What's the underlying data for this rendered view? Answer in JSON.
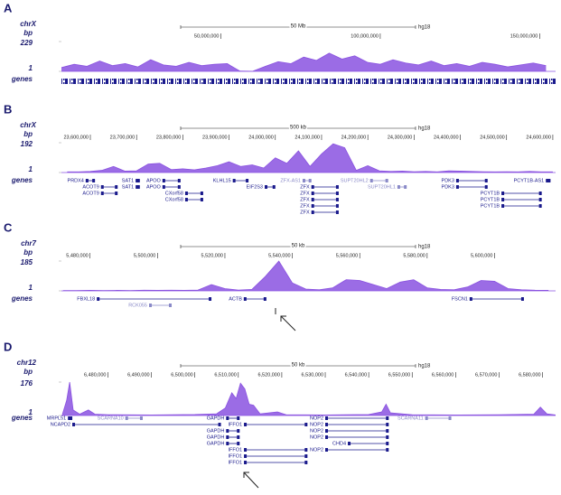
{
  "chart_data": [
    {
      "type": "area",
      "label": "A",
      "chromosome": "chrX",
      "y_label": "bp",
      "genes_label": "genes",
      "scale_bar_label": "50 Mb",
      "assembly": "hg18",
      "xlim": [
        0,
        155000000
      ],
      "xticks": [
        {
          "value": 50000000,
          "label": "50,000,000"
        },
        {
          "value": 100000000,
          "label": "100,000,000"
        },
        {
          "value": 150000000,
          "label": "150,000,000"
        }
      ],
      "ylim": [
        1,
        229
      ],
      "yticks": [
        1,
        229
      ],
      "color": "#8a52e0",
      "x": [
        0,
        4000000,
        8000000,
        12000000,
        16000000,
        20000000,
        24000000,
        28000000,
        32000000,
        36000000,
        40000000,
        44000000,
        48000000,
        52000000,
        56000000,
        60000000,
        64000000,
        68000000,
        72000000,
        76000000,
        80000000,
        84000000,
        88000000,
        92000000,
        96000000,
        100000000,
        104000000,
        108000000,
        112000000,
        116000000,
        120000000,
        124000000,
        128000000,
        132000000,
        136000000,
        140000000,
        144000000,
        148000000,
        152000000
      ],
      "values": [
        30,
        55,
        40,
        80,
        45,
        60,
        35,
        90,
        50,
        40,
        70,
        45,
        55,
        60,
        3,
        2,
        40,
        75,
        60,
        110,
        85,
        140,
        95,
        120,
        70,
        55,
        90,
        65,
        50,
        80,
        45,
        60,
        40,
        70,
        55,
        35,
        50,
        65,
        45
      ],
      "genes": []
    },
    {
      "type": "area",
      "label": "B",
      "chromosome": "chrX",
      "y_label": "bp",
      "genes_label": "genes",
      "scale_bar_label": "500 kb",
      "assembly": "hg18",
      "xlim": [
        23537500,
        24606000
      ],
      "xticks": [
        {
          "value": 23600000,
          "label": "23,600,000"
        },
        {
          "value": 23700000,
          "label": "23,700,000"
        },
        {
          "value": 23800000,
          "label": "23,800,000"
        },
        {
          "value": 23900000,
          "label": "23,900,000"
        },
        {
          "value": 24000000,
          "label": "24,000,000"
        },
        {
          "value": 24100000,
          "label": "24,100,000"
        },
        {
          "value": 24200000,
          "label": "24,200,000"
        },
        {
          "value": 24300000,
          "label": "24,300,000"
        },
        {
          "value": 24400000,
          "label": "24,400,000"
        },
        {
          "value": 24500000,
          "label": "24,500,000"
        },
        {
          "value": 24600000,
          "label": "24,600,000"
        }
      ],
      "ylim": [
        1,
        192
      ],
      "yticks": [
        1,
        192
      ],
      "color": "#8a52e0",
      "x": [
        23550000,
        23575000,
        23600000,
        23625000,
        23650000,
        23675000,
        23700000,
        23725000,
        23750000,
        23775000,
        23800000,
        23825000,
        23850000,
        23875000,
        23900000,
        23925000,
        23950000,
        23975000,
        24000000,
        24025000,
        24050000,
        24075000,
        24100000,
        24125000,
        24150000,
        24175000,
        24200000,
        24225000,
        24250000,
        24275000,
        24300000,
        24325000,
        24350000,
        24375000,
        24400000,
        24425000,
        24450000,
        24475000,
        24500000,
        24525000,
        24550000,
        24575000,
        24600000
      ],
      "values": [
        5,
        5,
        8,
        15,
        40,
        10,
        12,
        55,
        60,
        20,
        25,
        18,
        30,
        45,
        70,
        40,
        50,
        30,
        95,
        60,
        140,
        40,
        120,
        185,
        160,
        15,
        45,
        12,
        8,
        10,
        6,
        8,
        5,
        12,
        10,
        8,
        6,
        5,
        6,
        5,
        8,
        5,
        5
      ],
      "genes": [
        {
          "name": "PRDX4",
          "start": 23590000,
          "end": 23610000,
          "coding": true
        },
        {
          "name": "ACOT9",
          "start": 23623000,
          "end": 23659000,
          "coding": true
        },
        {
          "name": "ACOT9",
          "start": 23623000,
          "end": 23659000,
          "coding": true
        },
        {
          "name": "SAT1",
          "start": 23698000,
          "end": 23707000,
          "coding": true
        },
        {
          "name": "SAT1",
          "start": 23698000,
          "end": 23707000,
          "coding": true
        },
        {
          "name": "APOO",
          "start": 23756000,
          "end": 23795000,
          "coding": true
        },
        {
          "name": "APOO",
          "start": 23756000,
          "end": 23795000,
          "coding": true
        },
        {
          "name": "CXorf58",
          "start": 23805000,
          "end": 23844000,
          "coding": true
        },
        {
          "name": "CXorf58",
          "start": 23805000,
          "end": 23844000,
          "coding": true
        },
        {
          "name": "KLHL15",
          "start": 23908000,
          "end": 23942000,
          "coding": true
        },
        {
          "name": "EIF2S3",
          "start": 23977000,
          "end": 24000000,
          "coding": true
        },
        {
          "name": "ZFX-AS1",
          "start": 24059000,
          "end": 24078000,
          "coding": false
        },
        {
          "name": "ZFX",
          "start": 24078000,
          "end": 24137000,
          "coding": true
        },
        {
          "name": "ZFX",
          "start": 24078000,
          "end": 24137000,
          "coding": true
        },
        {
          "name": "ZFX",
          "start": 24078000,
          "end": 24137000,
          "coding": true
        },
        {
          "name": "ZFX",
          "start": 24078000,
          "end": 24137000,
          "coding": true
        },
        {
          "name": "ZFX",
          "start": 24078000,
          "end": 24137000,
          "coding": true
        },
        {
          "name": "SUPT20HL2",
          "start": 24205000,
          "end": 24244000,
          "coding": false
        },
        {
          "name": "SUPT20HL1",
          "start": 24264000,
          "end": 24284000,
          "coding": false
        },
        {
          "name": "PDK3",
          "start": 24391000,
          "end": 24459000,
          "coding": true
        },
        {
          "name": "PDK3",
          "start": 24391000,
          "end": 24459000,
          "coding": true
        },
        {
          "name": "PCYT1B-AS1",
          "start": 24585000,
          "end": 24595000,
          "coding": true
        },
        {
          "name": "PCYT1B",
          "start": 24489000,
          "end": 24576000,
          "coding": true
        },
        {
          "name": "PCYT1B",
          "start": 24489000,
          "end": 24576000,
          "coding": true
        },
        {
          "name": "PCYT1B",
          "start": 24489000,
          "end": 24576000,
          "coding": true
        }
      ]
    },
    {
      "type": "area",
      "label": "C",
      "chromosome": "chr7",
      "y_label": "bp",
      "genes_label": "genes",
      "scale_bar_label": "50 kb",
      "assembly": "hg18",
      "xlim": [
        5471500,
        5618100
      ],
      "xticks": [
        {
          "value": 5480000,
          "label": "5,480,000"
        },
        {
          "value": 5500000,
          "label": "5,500,000"
        },
        {
          "value": 5520000,
          "label": "5,520,000"
        },
        {
          "value": 5540000,
          "label": "5,540,000"
        },
        {
          "value": 5560000,
          "label": "5,560,000"
        },
        {
          "value": 5580000,
          "label": "5,580,000"
        },
        {
          "value": 5600000,
          "label": "5,600,000"
        }
      ],
      "ylim": [
        1,
        185
      ],
      "yticks": [
        1,
        185
      ],
      "color": "#8a52e0",
      "x": [
        5472000,
        5476000,
        5480000,
        5484000,
        5488000,
        5492000,
        5496000,
        5500000,
        5504000,
        5508000,
        5512000,
        5516000,
        5520000,
        5524000,
        5528000,
        5532000,
        5536000,
        5540000,
        5544000,
        5548000,
        5552000,
        5556000,
        5560000,
        5564000,
        5568000,
        5572000,
        5576000,
        5580000,
        5584000,
        5588000,
        5592000,
        5596000,
        5600000,
        5604000,
        5608000,
        5612000,
        5616000
      ],
      "values": [
        3,
        3,
        4,
        3,
        4,
        3,
        5,
        4,
        5,
        4,
        6,
        40,
        15,
        6,
        10,
        90,
        185,
        50,
        12,
        8,
        20,
        70,
        65,
        40,
        15,
        55,
        70,
        20,
        10,
        8,
        25,
        65,
        60,
        15,
        8,
        5,
        4
      ],
      "genes": [
        {
          "name": "FBXL18",
          "start": 5482000,
          "end": 5516000,
          "coding": true
        },
        {
          "name": "RCK055",
          "start": 5497500,
          "end": 5504200,
          "coding": false
        },
        {
          "name": "ACTB",
          "start": 5525600,
          "end": 5532300,
          "coding": true
        },
        {
          "name": "FSCN1",
          "start": 5592600,
          "end": 5608700,
          "coding": true
        }
      ]
    },
    {
      "type": "area",
      "label": "D",
      "chromosome": "chr12",
      "y_label": "bp",
      "genes_label": "genes",
      "scale_bar_label": "50 kb",
      "assembly": "hg18",
      "xlim": [
        6469300,
        6583000
      ],
      "xticks": [
        {
          "value": 6480000,
          "label": "6,480,000"
        },
        {
          "value": 6490000,
          "label": "6,490,000"
        },
        {
          "value": 6500000,
          "label": "6,500,000"
        },
        {
          "value": 6510000,
          "label": "6,510,000"
        },
        {
          "value": 6520000,
          "label": "6,520,000"
        },
        {
          "value": 6530000,
          "label": "6,530,000"
        },
        {
          "value": 6540000,
          "label": "6,540,000"
        },
        {
          "value": 6550000,
          "label": "6,550,000"
        },
        {
          "value": 6560000,
          "label": "6,560,000"
        },
        {
          "value": 6570000,
          "label": "6,570,000"
        },
        {
          "value": 6580000,
          "label": "6,580,000"
        }
      ],
      "ylim": [
        1,
        176
      ],
      "yticks": [
        1,
        176
      ],
      "color": "#8a52e0",
      "x": [
        6469500,
        6470500,
        6471200,
        6472000,
        6473500,
        6475500,
        6477000,
        6480000,
        6490000,
        6500000,
        6505000,
        6507000,
        6508500,
        6509500,
        6510500,
        6511500,
        6512500,
        6513500,
        6515000,
        6519000,
        6521000,
        6530000,
        6540000,
        6543000,
        6544000,
        6545000,
        6550000,
        6560000,
        6570000,
        6578000,
        6579500,
        6581000,
        6583000
      ],
      "values": [
        5,
        80,
        176,
        30,
        8,
        30,
        8,
        5,
        4,
        6,
        10,
        40,
        120,
        90,
        170,
        140,
        60,
        55,
        10,
        20,
        5,
        4,
        6,
        20,
        60,
        15,
        5,
        4,
        5,
        8,
        45,
        10,
        4
      ],
      "genes": [
        {
          "name": "MRPL51",
          "start": 6470800,
          "end": 6471800,
          "coding": true
        },
        {
          "name": "NCAPD2",
          "start": 6471800,
          "end": 6506000,
          "coding": true
        },
        {
          "name": "SCARNA10",
          "start": 6484000,
          "end": 6488000,
          "coding": false
        },
        {
          "name": "GAPDH",
          "start": 6507200,
          "end": 6510300,
          "coding": true
        },
        {
          "name": "GAPDH",
          "start": 6507200,
          "end": 6510300,
          "coding": true
        },
        {
          "name": "GAPDH",
          "start": 6507200,
          "end": 6510300,
          "coding": true
        },
        {
          "name": "GAPDH",
          "start": 6507200,
          "end": 6510300,
          "coding": true
        },
        {
          "name": "IFFO1",
          "start": 6511300,
          "end": 6525900,
          "coding": true
        },
        {
          "name": "IFFO1",
          "start": 6511300,
          "end": 6525900,
          "coding": true
        },
        {
          "name": "IFFO1",
          "start": 6511300,
          "end": 6525900,
          "coding": true
        },
        {
          "name": "IFFO1",
          "start": 6511300,
          "end": 6525900,
          "coding": true
        },
        {
          "name": "NOP2",
          "start": 6530000,
          "end": 6544600,
          "coding": true
        },
        {
          "name": "NOP2",
          "start": 6530000,
          "end": 6544600,
          "coding": true
        },
        {
          "name": "NOP2",
          "start": 6530000,
          "end": 6544600,
          "coding": true
        },
        {
          "name": "NOP2",
          "start": 6530000,
          "end": 6544600,
          "coding": true
        },
        {
          "name": "CHD4",
          "start": 6535200,
          "end": 6544600,
          "coding": true
        },
        {
          "name": "NOP2",
          "start": 6530000,
          "end": 6544600,
          "coding": true
        },
        {
          "name": "SCARNA11",
          "start": 6553000,
          "end": 6559000,
          "coding": false
        }
      ]
    }
  ]
}
